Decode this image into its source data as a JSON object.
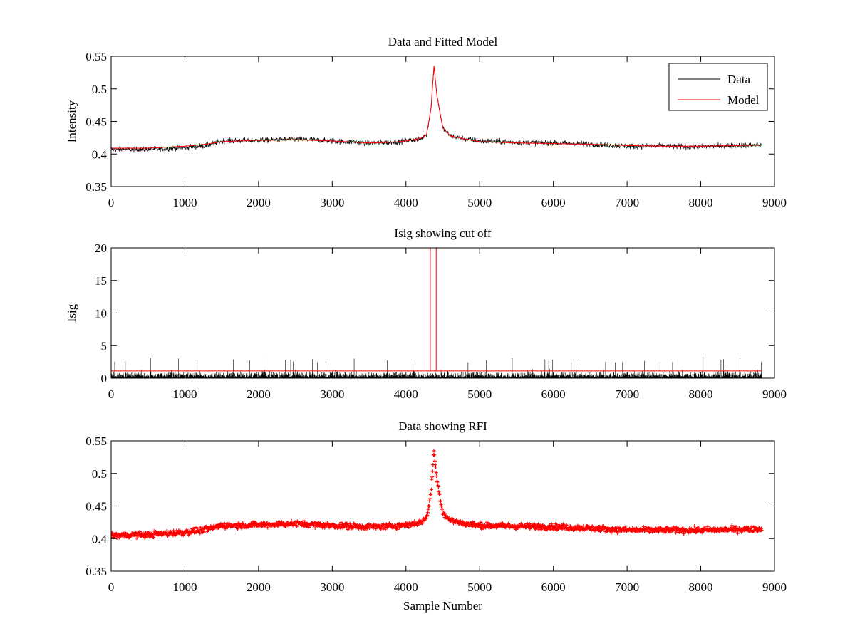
{
  "chart_data": [
    {
      "type": "line",
      "title": "Data and Fitted Model",
      "xlabel": "",
      "ylabel": "Intensity",
      "xlim": [
        0,
        9000
      ],
      "ylim": [
        0.35,
        0.55
      ],
      "xticks": [
        0,
        1000,
        2000,
        3000,
        4000,
        5000,
        6000,
        7000,
        8000,
        9000
      ],
      "yticks": [
        0.35,
        0.4,
        0.45,
        0.5,
        0.55
      ],
      "xtick_labels": [
        "0",
        "1000",
        "2000",
        "3000",
        "4000",
        "5000",
        "6000",
        "7000",
        "8000",
        "9000"
      ],
      "ytick_labels": [
        "0.35",
        "0.4",
        "0.45",
        "0.5",
        "0.55"
      ],
      "grid": false,
      "legend": "top-right",
      "series": [
        {
          "name": "Data",
          "color": "#000000",
          "style": "noisy-line",
          "noise_amplitude": 0.008,
          "x": [
            0,
            500,
            1000,
            1300,
            1500,
            2000,
            2500,
            3000,
            3500,
            3800,
            4000,
            4200,
            4280,
            4340,
            4380,
            4420,
            4500,
            4600,
            4800,
            5000,
            5500,
            6000,
            6500,
            7000,
            7500,
            8000,
            8500,
            8830
          ],
          "y": [
            0.407,
            0.407,
            0.41,
            0.413,
            0.42,
            0.421,
            0.423,
            0.42,
            0.417,
            0.418,
            0.42,
            0.423,
            0.43,
            0.47,
            0.535,
            0.49,
            0.44,
            0.428,
            0.423,
            0.42,
            0.418,
            0.417,
            0.415,
            0.412,
            0.412,
            0.411,
            0.413,
            0.414
          ]
        },
        {
          "name": "Model",
          "color": "#ff0000",
          "style": "line",
          "x": [
            0,
            500,
            1000,
            1300,
            1500,
            2000,
            2500,
            3000,
            3500,
            3800,
            4000,
            4200,
            4280,
            4340,
            4380,
            4420,
            4500,
            4600,
            4800,
            5000,
            5500,
            6000,
            6500,
            7000,
            7500,
            8000,
            8500,
            8830
          ],
          "y": [
            0.409,
            0.409,
            0.412,
            0.415,
            0.419,
            0.421,
            0.422,
            0.42,
            0.417,
            0.418,
            0.42,
            0.424,
            0.43,
            0.47,
            0.535,
            0.49,
            0.44,
            0.428,
            0.423,
            0.419,
            0.417,
            0.416,
            0.415,
            0.413,
            0.412,
            0.412,
            0.413,
            0.414
          ]
        }
      ]
    },
    {
      "type": "line",
      "title": "Isig showing cut off",
      "xlabel": "",
      "ylabel": "Isig",
      "xlim": [
        0,
        9000
      ],
      "ylim": [
        0,
        20
      ],
      "xticks": [
        0,
        1000,
        2000,
        3000,
        4000,
        5000,
        6000,
        7000,
        8000,
        9000
      ],
      "yticks": [
        0,
        5,
        10,
        15,
        20
      ],
      "xtick_labels": [
        "0",
        "1000",
        "2000",
        "3000",
        "4000",
        "5000",
        "6000",
        "7000",
        "8000",
        "9000"
      ],
      "ytick_labels": [
        "0",
        "5",
        "10",
        "15",
        "20"
      ],
      "grid": false,
      "series": [
        {
          "color": "#000000",
          "style": "noise-band",
          "x": [
            0,
            8830
          ],
          "y": [
            0.9,
            0.9
          ],
          "noise_max": 3.5
        },
        {
          "color": "#ff0000",
          "style": "line",
          "x": [
            0,
            4330,
            4330,
            4330,
            4410,
            4410,
            4410,
            8830
          ],
          "y": [
            1.1,
            1.1,
            20,
            1.1,
            1.1,
            20,
            1.1,
            1.1
          ]
        }
      ]
    },
    {
      "type": "scatter",
      "title": "Data showing RFI",
      "xlabel": "Sample Number",
      "ylabel": "",
      "xlim": [
        0,
        9000
      ],
      "ylim": [
        0.35,
        0.55
      ],
      "xticks": [
        0,
        1000,
        2000,
        3000,
        4000,
        5000,
        6000,
        7000,
        8000,
        9000
      ],
      "yticks": [
        0.35,
        0.4,
        0.45,
        0.5,
        0.55
      ],
      "xtick_labels": [
        "0",
        "1000",
        "2000",
        "3000",
        "4000",
        "5000",
        "6000",
        "7000",
        "8000",
        "9000"
      ],
      "ytick_labels": [
        "0.35",
        "0.4",
        "0.45",
        "0.5",
        "0.55"
      ],
      "grid": false,
      "series": [
        {
          "color": "#ff0000",
          "marker": "+",
          "noise_amplitude": 0.008,
          "x": [
            0,
            500,
            1000,
            1300,
            1500,
            2000,
            2500,
            3000,
            3500,
            3800,
            4000,
            4200,
            4280,
            4340,
            4380,
            4420,
            4500,
            4600,
            4800,
            5000,
            5500,
            6000,
            6500,
            7000,
            7500,
            8000,
            8500,
            8830
          ],
          "y": [
            0.405,
            0.406,
            0.41,
            0.414,
            0.42,
            0.421,
            0.423,
            0.42,
            0.418,
            0.419,
            0.421,
            0.425,
            0.432,
            0.47,
            0.535,
            0.49,
            0.44,
            0.428,
            0.423,
            0.42,
            0.419,
            0.418,
            0.416,
            0.413,
            0.413,
            0.413,
            0.414,
            0.415
          ]
        }
      ]
    }
  ]
}
